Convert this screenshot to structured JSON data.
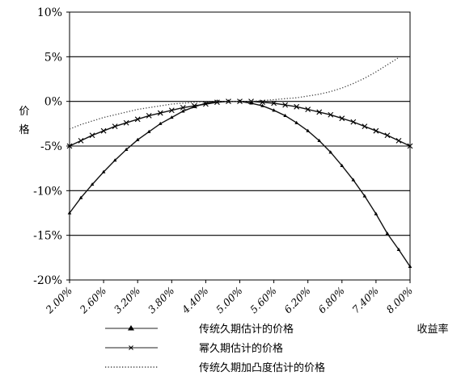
{
  "chart_data": {
    "type": "line",
    "ylabel": "价格",
    "xlabel": "收益率",
    "x_ticks": [
      "2.00%",
      "2.60%",
      "3.20%",
      "3.80%",
      "4.40%",
      "5.00%",
      "5.60%",
      "6.20%",
      "6.80%",
      "7.40%",
      "8.00%"
    ],
    "y_ticks": [
      "10%",
      "5%",
      "0%",
      "-5%",
      "-10%",
      "-15%",
      "-20%"
    ],
    "xlim": [
      2.0,
      8.0
    ],
    "ylim": [
      -20,
      10
    ],
    "grid": "horizontal",
    "legend_position": "bottom",
    "series": [
      {
        "name": "传统久期估计的价格",
        "marker": "triangle",
        "style": "solid",
        "x": [
          2.0,
          2.2,
          2.4,
          2.6,
          2.8,
          3.0,
          3.2,
          3.4,
          3.6,
          3.8,
          4.0,
          4.2,
          4.4,
          4.6,
          4.8,
          5.0,
          5.2,
          5.4,
          5.6,
          5.8,
          6.0,
          6.2,
          6.4,
          6.6,
          6.8,
          7.0,
          7.2,
          7.4,
          7.6,
          7.8,
          8.0
        ],
        "y": [
          -12.5,
          -10.8,
          -9.3,
          -7.9,
          -6.6,
          -5.4,
          -4.3,
          -3.4,
          -2.5,
          -1.8,
          -1.1,
          -0.6,
          -0.2,
          0.0,
          0.0,
          0.0,
          -0.2,
          -0.5,
          -1.0,
          -1.6,
          -2.4,
          -3.3,
          -4.4,
          -5.7,
          -7.2,
          -8.8,
          -10.6,
          -12.6,
          -14.8,
          -16.6,
          -18.5
        ]
      },
      {
        "name": "幂久期估计的价格",
        "marker": "x",
        "style": "solid",
        "x": [
          2.0,
          2.2,
          2.4,
          2.6,
          2.8,
          3.0,
          3.2,
          3.4,
          3.6,
          3.8,
          4.0,
          4.2,
          4.4,
          4.6,
          4.8,
          5.0,
          5.2,
          5.4,
          5.6,
          5.8,
          6.0,
          6.2,
          6.4,
          6.6,
          6.8,
          7.0,
          7.2,
          7.4,
          7.6,
          7.8,
          8.0
        ],
        "y": [
          -5.0,
          -4.4,
          -3.8,
          -3.3,
          -2.8,
          -2.4,
          -2.0,
          -1.6,
          -1.3,
          -1.0,
          -0.7,
          -0.5,
          -0.3,
          -0.1,
          0.0,
          0.0,
          0.0,
          -0.1,
          -0.2,
          -0.4,
          -0.6,
          -0.9,
          -1.2,
          -1.5,
          -1.9,
          -2.3,
          -2.8,
          -3.3,
          -3.8,
          -4.4,
          -5.0
        ]
      },
      {
        "name": "传统久期加凸度估计的价格",
        "marker": "none",
        "style": "dotted",
        "x": [
          2.0,
          2.2,
          2.4,
          2.6,
          2.8,
          3.0,
          3.2,
          3.4,
          3.6,
          3.8,
          4.0,
          4.2,
          4.4,
          4.6,
          4.8,
          5.0,
          5.2,
          5.4,
          5.6,
          5.8,
          6.0,
          6.2,
          6.4,
          6.6,
          6.8,
          7.0,
          7.2,
          7.4,
          7.6,
          7.8
        ],
        "y": [
          -3.1,
          -2.6,
          -2.2,
          -1.8,
          -1.5,
          -1.2,
          -0.9,
          -0.7,
          -0.5,
          -0.3,
          -0.2,
          -0.1,
          0.0,
          0.0,
          0.0,
          0.0,
          0.0,
          0.1,
          0.2,
          0.3,
          0.4,
          0.6,
          0.8,
          1.1,
          1.5,
          2.0,
          2.6,
          3.3,
          4.1,
          4.9
        ]
      }
    ]
  }
}
